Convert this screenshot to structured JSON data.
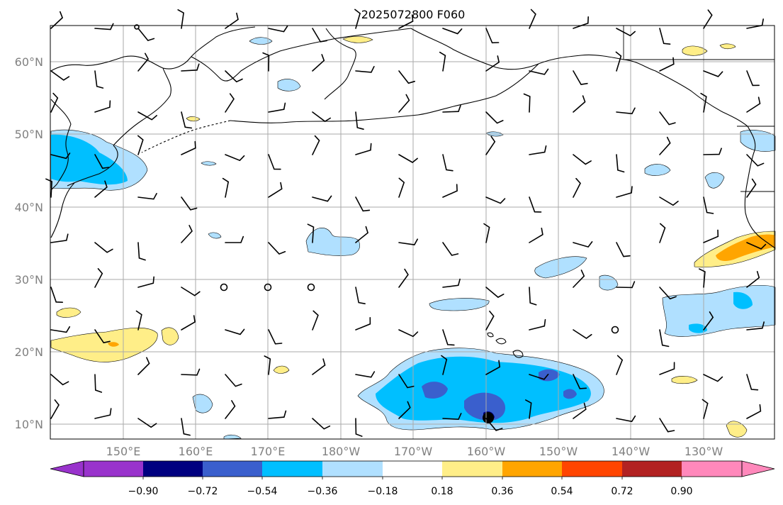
{
  "title": "2025072800 F060",
  "lat_labels": [
    "60°N",
    "50°N",
    "40°N",
    "30°N",
    "20°N",
    "10°N"
  ],
  "lon_labels": [
    "150°E",
    "160°E",
    "170°E",
    "180°W",
    "170°W",
    "160°W",
    "150°W",
    "140°W",
    "130°W"
  ],
  "colorbar": {
    "ticks": [
      "−0.90",
      "−0.72",
      "−0.54",
      "−0.36",
      "−0.18",
      "0.18",
      "0.36",
      "0.54",
      "0.72",
      "0.90"
    ],
    "under_color": "#9933cc",
    "colors": [
      "#000080",
      "#3a5fcd",
      "#00bfff",
      "#b0e0ff",
      "#ffffff",
      "#ffee88",
      "#ffa500",
      "#ff4500",
      "#b22222",
      "#ff88bb"
    ],
    "over_color": "#ff88bb"
  },
  "colors": {
    "coast": "#000000",
    "grid": "#aaaaaa",
    "axis_label": "#808080",
    "light_blue": "#b0e0ff",
    "cyan": "#00bfff",
    "royal_blue": "#3a5fcd",
    "navy": "#000080",
    "yellow": "#ffee88",
    "orange": "#ffa500"
  }
}
